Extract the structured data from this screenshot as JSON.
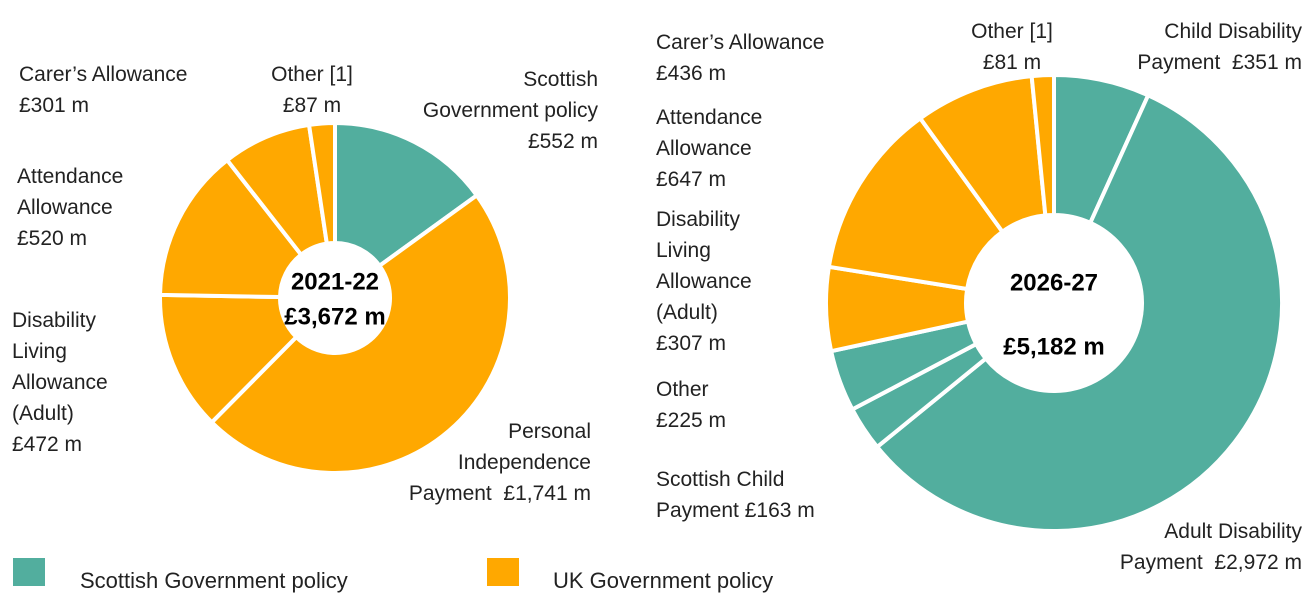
{
  "colors": {
    "scottish": "#52ae9e",
    "uk": "#ffa800",
    "separator": "#ffffff"
  },
  "legend": [
    {
      "label": "Scottish Government policy",
      "color": "#52ae9e"
    },
    {
      "label": "UK Government policy",
      "color": "#ffa800"
    }
  ],
  "chart_data": [
    {
      "type": "pie",
      "style": "donut",
      "center_label": [
        "2021-22",
        "£3,672 m"
      ],
      "total": 3672,
      "unit": "£ m",
      "slices": [
        {
          "name": "Scottish Government policy",
          "value": 552,
          "policy": "scottish",
          "label": [
            "Scottish",
            "Government policy",
            "£552 m"
          ]
        },
        {
          "name": "Personal Independence Payment",
          "value": 1741,
          "policy": "uk",
          "label": [
            "Personal",
            "Independence",
            "Payment  £1,741 m"
          ]
        },
        {
          "name": "Disability Living Allowance (Adult)",
          "value": 472,
          "policy": "uk",
          "label": [
            "Disability",
            "Living",
            "Allowance",
            "(Adult)",
            "£472 m"
          ]
        },
        {
          "name": "Attendance Allowance",
          "value": 520,
          "policy": "uk",
          "label": [
            "Attendance",
            "Allowance",
            "£520 m"
          ]
        },
        {
          "name": "Carer’s Allowance",
          "value": 301,
          "policy": "uk",
          "label": [
            "Carer’s Allowance",
            "£301 m"
          ]
        },
        {
          "name": "Other [1]",
          "value": 87,
          "policy": "uk",
          "label": [
            "Other [1]",
            "£87 m"
          ]
        }
      ]
    },
    {
      "type": "pie",
      "style": "donut",
      "center_label": [
        "2026-27",
        "£5,182 m"
      ],
      "total": 5182,
      "unit": "£ m",
      "slices": [
        {
          "name": "Child Disability Payment",
          "value": 351,
          "policy": "scottish",
          "label": [
            "Child Disability",
            "Payment  £351 m"
          ]
        },
        {
          "name": "Adult Disability Payment",
          "value": 2972,
          "policy": "scottish",
          "label": [
            "Adult Disability",
            "Payment  £2,972 m"
          ]
        },
        {
          "name": "Scottish Child Payment",
          "value": 163,
          "policy": "scottish",
          "label": [
            "Scottish Child",
            "Payment £163 m"
          ]
        },
        {
          "name": "Other",
          "value": 225,
          "policy": "scottish",
          "label": [
            "Other",
            "£225 m"
          ]
        },
        {
          "name": "Disability Living Allowance (Adult)",
          "value": 307,
          "policy": "uk",
          "label": [
            "Disability",
            "Living",
            "Allowance",
            "(Adult)",
            "£307 m"
          ]
        },
        {
          "name": "Attendance Allowance",
          "value": 647,
          "policy": "uk",
          "label": [
            "Attendance",
            "Allowance",
            "£647 m"
          ]
        },
        {
          "name": "Carer’s Allowance",
          "value": 436,
          "policy": "uk",
          "label": [
            "Carer’s Allowance",
            "£436 m"
          ]
        },
        {
          "name": "Other [1]",
          "value": 81,
          "policy": "uk",
          "label": [
            "Other [1]",
            "£81 m"
          ]
        }
      ]
    }
  ]
}
